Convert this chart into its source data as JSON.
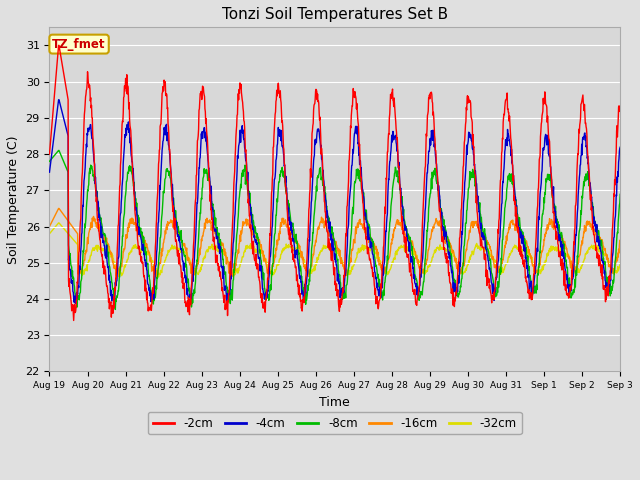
{
  "title": "Tonzi Soil Temperatures Set B",
  "xlabel": "Time",
  "ylabel": "Soil Temperature (C)",
  "ylim": [
    22.0,
    31.5
  ],
  "yticks": [
    22.0,
    23.0,
    24.0,
    25.0,
    26.0,
    27.0,
    28.0,
    29.0,
    30.0,
    31.0
  ],
  "fig_bg": "#e0e0e0",
  "plot_bg": "#d8d8d8",
  "legend_label": "TZ_fmet",
  "legend_bg": "#ffffcc",
  "legend_border": "#c8a000",
  "series_colors": {
    "-2cm": "#ff0000",
    "-4cm": "#0000cc",
    "-8cm": "#00bb00",
    "-16cm": "#ff8800",
    "-32cm": "#dddd00"
  },
  "x_tick_labels": [
    "Aug 19",
    "Aug 20",
    "Aug 21",
    "Aug 22",
    "Aug 23",
    "Aug 24",
    "Aug 25",
    "Aug 26",
    "Aug 27",
    "Aug 28",
    "Aug 29",
    "Aug 30",
    "Aug 31",
    "Sep 1",
    "Sep 2",
    "Sep 3"
  ],
  "num_days": 15,
  "points_per_day": 96
}
